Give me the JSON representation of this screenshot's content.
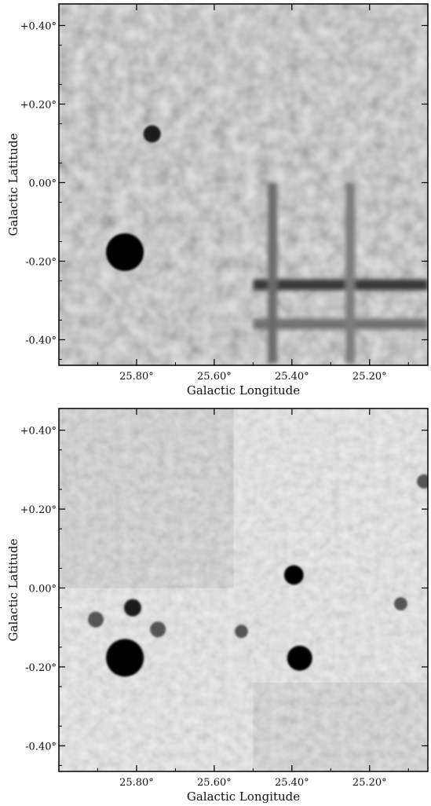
{
  "chart_data": [
    {
      "type": "heatmap",
      "xlabel": "Galactic Longitude",
      "ylabel": "Galactic Latitude",
      "xlim": [
        26.0,
        25.05
      ],
      "ylim": [
        -0.465,
        0.455
      ],
      "xticks": [
        25.8,
        25.6,
        25.4,
        25.2
      ],
      "xtick_labels": [
        "25.80°",
        "25.60°",
        "25.40°",
        "25.20°"
      ],
      "yticks": [
        0.4,
        0.2,
        0.0,
        -0.2,
        -0.4
      ],
      "ytick_labels": [
        "+0.40°",
        "+0.20°",
        "0.00°",
        "-0.20°",
        "-0.40°"
      ],
      "colormap": "grayscale",
      "sources": [
        {
          "l": 25.83,
          "b": -0.177,
          "size": 1.0
        },
        {
          "l": 25.76,
          "b": 0.124,
          "size": 0.35
        }
      ],
      "stripes": [
        {
          "orientation": "horizontal",
          "b": -0.26,
          "l_from": 25.5,
          "l_to": 25.05,
          "strength": 0.85
        },
        {
          "orientation": "horizontal",
          "b": -0.36,
          "l_from": 25.5,
          "l_to": 25.05,
          "strength": 0.5
        },
        {
          "orientation": "vertical",
          "l": 25.45,
          "b_from": -0.46,
          "b_to": 0.0,
          "strength": 0.55
        },
        {
          "orientation": "vertical",
          "l": 25.25,
          "b_from": -0.46,
          "b_to": 0.0,
          "strength": 0.45
        }
      ]
    },
    {
      "type": "heatmap",
      "xlabel": "Galactic Longitude",
      "ylabel": "Galactic Latitude",
      "xlim": [
        26.0,
        25.05
      ],
      "ylim": [
        -0.465,
        0.455
      ],
      "xticks": [
        25.8,
        25.6,
        25.4,
        25.2
      ],
      "xtick_labels": [
        "25.80°",
        "25.60°",
        "25.40°",
        "25.20°"
      ],
      "yticks": [
        0.4,
        0.2,
        0.0,
        -0.2,
        -0.4
      ],
      "ytick_labels": [
        "+0.40°",
        "+0.20°",
        "0.00°",
        "-0.20°",
        "-0.40°"
      ],
      "colormap": "grayscale",
      "sources": [
        {
          "l": 25.83,
          "b": -0.177,
          "size": 1.0
        },
        {
          "l": 25.38,
          "b": -0.178,
          "size": 0.6
        },
        {
          "l": 25.395,
          "b": 0.033,
          "size": 0.42
        },
        {
          "l": 25.81,
          "b": -0.05,
          "size": 0.35
        },
        {
          "l": 25.905,
          "b": -0.08,
          "size": 0.3
        },
        {
          "l": 25.745,
          "b": -0.105,
          "size": 0.3
        },
        {
          "l": 25.53,
          "b": -0.11,
          "size": 0.22
        },
        {
          "l": 25.12,
          "b": -0.04,
          "size": 0.22
        },
        {
          "l": 25.06,
          "b": 0.27,
          "size": 0.25
        }
      ],
      "patches": [
        {
          "l_from": 25.55,
          "l_to": 26.0,
          "b_from": 0.0,
          "b_to": 0.455,
          "shade": 0.18
        },
        {
          "l_from": 25.05,
          "l_to": 25.5,
          "b_from": -0.465,
          "b_to": -0.24,
          "shade": 0.16
        }
      ]
    }
  ]
}
